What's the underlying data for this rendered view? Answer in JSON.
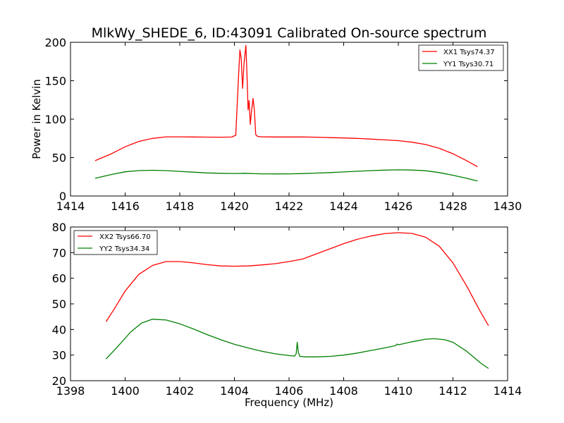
{
  "title": "MlkWy_SHEDE_6, ID:43091 Calibrated On-source spectrum",
  "chart_data": [
    {
      "type": "line",
      "ylabel": "Power in Kelvin",
      "xlabel": "",
      "xlim": [
        1414,
        1430
      ],
      "ylim": [
        0,
        200
      ],
      "xticks": [
        "1414",
        "1416",
        "1418",
        "1420",
        "1422",
        "1424",
        "1426",
        "1428",
        "1430"
      ],
      "yticks": [
        "0",
        "50",
        "100",
        "150",
        "200"
      ],
      "grid": false,
      "legend_position": "top-right",
      "series": [
        {
          "name": "XX1 Tsys74.37",
          "color": "#ff0000",
          "points": [
            [
              1414.9,
              46
            ],
            [
              1415.5,
              55
            ],
            [
              1416.0,
              64
            ],
            [
              1416.5,
              71
            ],
            [
              1417.0,
              75
            ],
            [
              1417.5,
              77
            ],
            [
              1418.0,
              77
            ],
            [
              1418.5,
              76.8
            ],
            [
              1419.0,
              76.6
            ],
            [
              1419.5,
              76.5
            ],
            [
              1419.9,
              76.7
            ],
            [
              1420.05,
              79
            ],
            [
              1420.15,
              155
            ],
            [
              1420.2,
              190
            ],
            [
              1420.25,
              178
            ],
            [
              1420.3,
              140
            ],
            [
              1420.35,
              172
            ],
            [
              1420.42,
              196
            ],
            [
              1420.47,
              148
            ],
            [
              1420.5,
              112
            ],
            [
              1420.54,
              124
            ],
            [
              1420.58,
              93
            ],
            [
              1420.62,
              108
            ],
            [
              1420.68,
              127
            ],
            [
              1420.73,
              112
            ],
            [
              1420.78,
              80
            ],
            [
              1420.85,
              77.5
            ],
            [
              1421.0,
              77
            ],
            [
              1421.5,
              76.8
            ],
            [
              1422.0,
              76.8
            ],
            [
              1422.5,
              76.8
            ],
            [
              1423.0,
              76.5
            ],
            [
              1423.5,
              76
            ],
            [
              1424.0,
              75.5
            ],
            [
              1424.5,
              75
            ],
            [
              1425.0,
              74
            ],
            [
              1425.5,
              73
            ],
            [
              1426.0,
              72
            ],
            [
              1426.5,
              70
            ],
            [
              1427.0,
              67
            ],
            [
              1427.5,
              62
            ],
            [
              1428.0,
              55
            ],
            [
              1428.5,
              46
            ],
            [
              1428.9,
              38
            ]
          ]
        },
        {
          "name": "YY1 Tsys30.71",
          "color": "#008000",
          "points": [
            [
              1414.9,
              23
            ],
            [
              1415.5,
              28
            ],
            [
              1416.0,
              31.5
            ],
            [
              1416.5,
              33
            ],
            [
              1417.0,
              33.5
            ],
            [
              1417.5,
              33
            ],
            [
              1418.0,
              32
            ],
            [
              1418.5,
              31
            ],
            [
              1419.0,
              30
            ],
            [
              1419.5,
              29.5
            ],
            [
              1420.0,
              29.3
            ],
            [
              1420.4,
              29.5
            ],
            [
              1420.8,
              29
            ],
            [
              1421.0,
              28.8
            ],
            [
              1421.5,
              28.7
            ],
            [
              1422.0,
              28.8
            ],
            [
              1422.5,
              29.2
            ],
            [
              1423.0,
              29.8
            ],
            [
              1423.5,
              30.5
            ],
            [
              1424.0,
              31.3
            ],
            [
              1424.5,
              32.2
            ],
            [
              1425.0,
              33
            ],
            [
              1425.5,
              33.7
            ],
            [
              1426.0,
              34
            ],
            [
              1426.5,
              33.8
            ],
            [
              1427.0,
              32.8
            ],
            [
              1427.5,
              30.5
            ],
            [
              1428.0,
              27
            ],
            [
              1428.5,
              23
            ],
            [
              1428.9,
              19.5
            ]
          ]
        }
      ]
    },
    {
      "type": "line",
      "ylabel": "",
      "xlabel": "Frequency (MHz)",
      "xlim": [
        1398,
        1414
      ],
      "ylim": [
        20,
        80
      ],
      "xticks": [
        "1398",
        "1400",
        "1402",
        "1404",
        "1406",
        "1408",
        "1410",
        "1412",
        "1414"
      ],
      "yticks": [
        "20",
        "30",
        "40",
        "50",
        "60",
        "70",
        "80"
      ],
      "grid": false,
      "legend_position": "top-left",
      "series": [
        {
          "name": "XX2 Tsys66.70",
          "color": "#ff0000",
          "points": [
            [
              1399.3,
              43
            ],
            [
              1399.6,
              48
            ],
            [
              1400.0,
              55
            ],
            [
              1400.5,
              61.5
            ],
            [
              1401.0,
              65
            ],
            [
              1401.5,
              66.5
            ],
            [
              1402.0,
              66.5
            ],
            [
              1402.5,
              66
            ],
            [
              1403.0,
              65.3
            ],
            [
              1403.5,
              64.8
            ],
            [
              1404.0,
              64.7
            ],
            [
              1404.5,
              64.8
            ],
            [
              1405.0,
              65.2
            ],
            [
              1405.5,
              65.7
            ],
            [
              1406.0,
              66.5
            ],
            [
              1406.5,
              67.5
            ],
            [
              1407.0,
              69.5
            ],
            [
              1407.5,
              71.5
            ],
            [
              1408.0,
              73.5
            ],
            [
              1408.5,
              75.2
            ],
            [
              1409.0,
              76.5
            ],
            [
              1409.5,
              77.4
            ],
            [
              1410.0,
              77.8
            ],
            [
              1410.5,
              77.5
            ],
            [
              1411.0,
              76
            ],
            [
              1411.5,
              72.5
            ],
            [
              1412.0,
              66
            ],
            [
              1412.5,
              57
            ],
            [
              1413.0,
              47
            ],
            [
              1413.3,
              41.5
            ]
          ]
        },
        {
          "name": "YY2 Tsys34.34",
          "color": "#008000",
          "points": [
            [
              1399.3,
              28.5
            ],
            [
              1399.7,
              33
            ],
            [
              1400.2,
              39
            ],
            [
              1400.6,
              42.5
            ],
            [
              1401.0,
              44
            ],
            [
              1401.5,
              43.7
            ],
            [
              1402.0,
              42.2
            ],
            [
              1402.5,
              40.2
            ],
            [
              1403.0,
              38
            ],
            [
              1403.5,
              36
            ],
            [
              1404.0,
              34.2
            ],
            [
              1404.5,
              32.8
            ],
            [
              1405.0,
              31.5
            ],
            [
              1405.5,
              30.5
            ],
            [
              1406.0,
              29.8
            ],
            [
              1406.2,
              29.6
            ],
            [
              1406.26,
              30.5
            ],
            [
              1406.3,
              35
            ],
            [
              1406.34,
              31
            ],
            [
              1406.4,
              29.5
            ],
            [
              1406.6,
              29.3
            ],
            [
              1407.0,
              29.3
            ],
            [
              1407.5,
              29.5
            ],
            [
              1408.0,
              30
            ],
            [
              1408.5,
              30.8
            ],
            [
              1409.0,
              31.8
            ],
            [
              1409.5,
              32.8
            ],
            [
              1409.9,
              33.7
            ],
            [
              1409.95,
              34.3
            ],
            [
              1410.0,
              34
            ],
            [
              1410.5,
              35.2
            ],
            [
              1411.0,
              36.2
            ],
            [
              1411.3,
              36.4
            ],
            [
              1411.7,
              36
            ],
            [
              1412.0,
              35
            ],
            [
              1412.5,
              31.5
            ],
            [
              1413.0,
              27
            ],
            [
              1413.3,
              24.8
            ]
          ]
        }
      ]
    }
  ]
}
